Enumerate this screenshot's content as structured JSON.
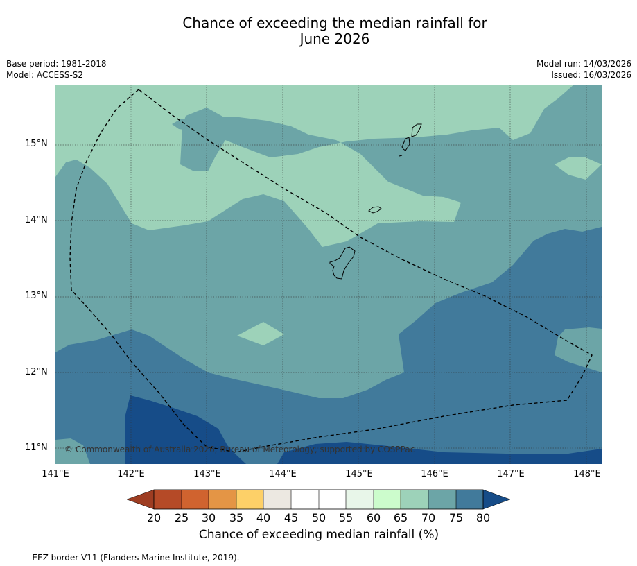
{
  "title_line1": "Chance of exceeding the median rainfall for",
  "title_line2": "June 2026",
  "base_period": "Base period: 1981-2018",
  "model": "Model: ACCESS-S2",
  "model_run": "Model run: 14/03/2026",
  "issued": "Issued: 16/03/2026",
  "map": {
    "copyright": "© Commonwealth of Australia 2026, Bureau of Meteorology, supported by COSPPac",
    "lat_ticks": [
      "15°N",
      "14°N",
      "13°N",
      "12°N",
      "11°N"
    ],
    "lon_ticks": [
      "141°E",
      "142°E",
      "143°E",
      "144°E",
      "145°E",
      "146°E",
      "147°E",
      "148°E"
    ],
    "extent": {
      "lon": [
        141.0,
        148.2
      ],
      "lat": [
        10.8,
        15.8
      ]
    }
  },
  "colorbar": {
    "title": "Chance of exceeding median rainfall (%)",
    "labels": [
      "20",
      "25",
      "30",
      "35",
      "40",
      "45",
      "50",
      "55",
      "60",
      "65",
      "70",
      "75",
      "80"
    ],
    "colors": {
      "below_20": "#9e3d22",
      "20-25": "#b54a27",
      "25-30": "#d0632f",
      "30-35": "#e49545",
      "35-40": "#fdd068",
      "40-45": "#ece8e1",
      "45-55": "#ffffff",
      "55-60": "#e8f6e9",
      "60-65": "#ccfccc",
      "65-70": "#9dd2b9",
      "70-75": "#6ca5a7",
      "75-80": "#417a9b",
      "above_80": "#164c88"
    }
  },
  "footnote": "--  --  -- EEZ border V11 (Flanders Marine Institute, 2019)."
}
